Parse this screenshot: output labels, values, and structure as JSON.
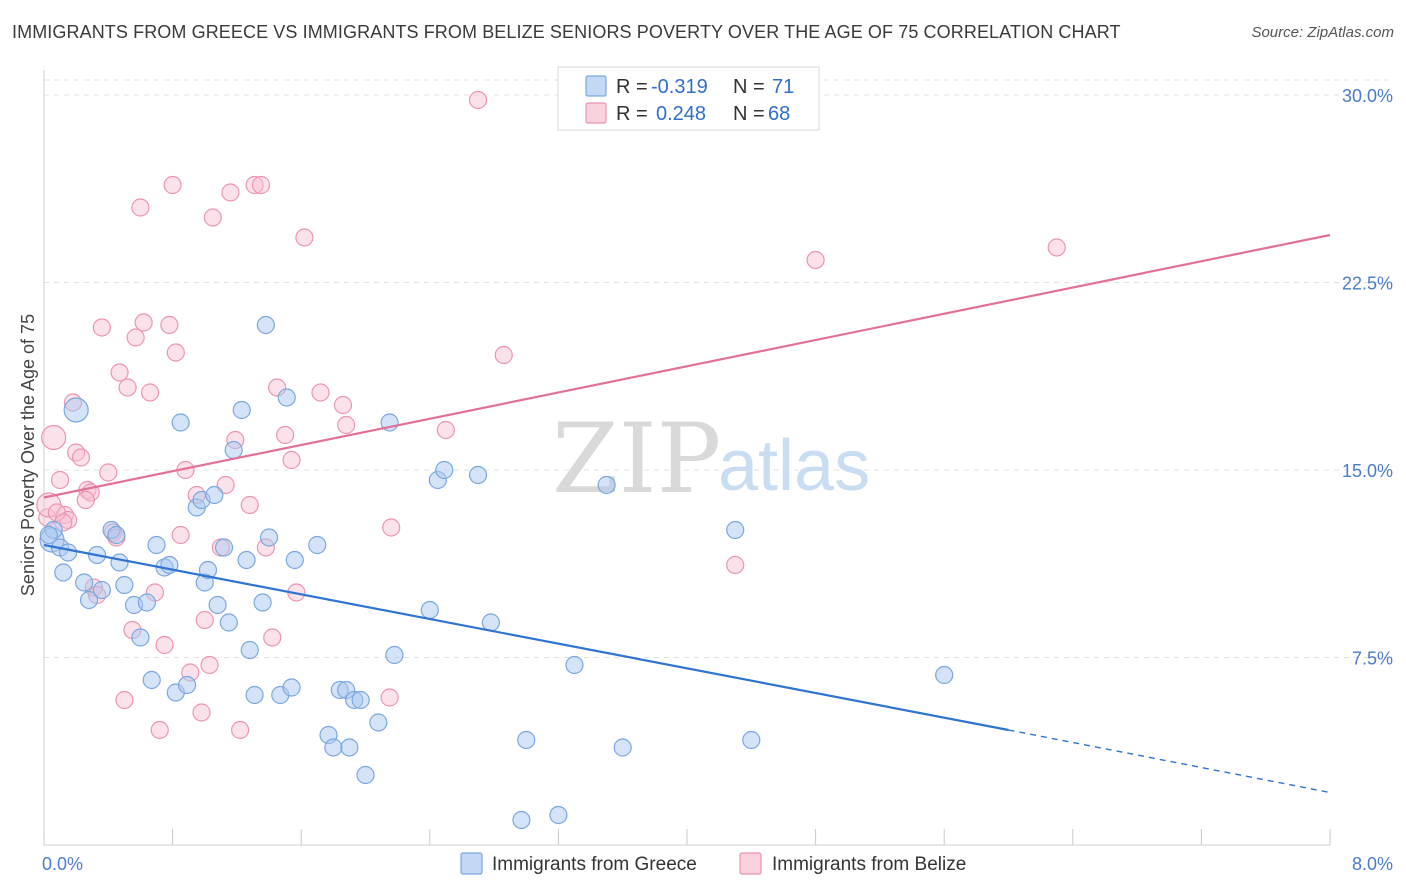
{
  "title": "IMMIGRANTS FROM GREECE VS IMMIGRANTS FROM BELIZE SENIORS POVERTY OVER THE AGE OF 75 CORRELATION CHART",
  "source": "Source: ZipAtlas.com",
  "watermark": {
    "zip": "ZIP",
    "atlas": "atlas"
  },
  "legend": {
    "r_label": "R =",
    "n_label": "N =",
    "rows": [
      {
        "r": "-0.319",
        "n": "71"
      },
      {
        "r": "0.248",
        "n": "68"
      }
    ]
  },
  "colors": {
    "greece_fill": "#a9c8ef",
    "greece_stroke": "#7aa7df",
    "greece_line": "#2f74d0",
    "belize_fill": "#f7bfd0",
    "belize_stroke": "#ec94b1",
    "belize_line": "#e2719a",
    "tick_text": "#4a7cc9",
    "grid": "#e2e2e2"
  },
  "chart_data": {
    "type": "scatter",
    "title": "IMMIGRANTS FROM GREECE VS IMMIGRANTS FROM BELIZE SENIORS POVERTY OVER THE AGE OF 75 CORRELATION CHART",
    "xlabel": "",
    "ylabel": "Seniors Poverty Over the Age of 75",
    "xlim": [
      0,
      8
    ],
    "ylim": [
      0,
      31
    ],
    "x_tick_labels": [
      "0.0%",
      "8.0%"
    ],
    "y_ticks": [
      7.5,
      15.0,
      22.5,
      30.0
    ],
    "y_tick_labels": [
      "7.5%",
      "15.0%",
      "22.5%",
      "30.0%"
    ],
    "grid": true,
    "legend_position": "top-center",
    "series": [
      {
        "name": "Immigrants from Greece",
        "r": -0.319,
        "n": 71,
        "trend": {
          "x0": 0,
          "y0": 12.0,
          "x1": 6.0,
          "y1": 4.6,
          "dash_to_x": 8.0,
          "dash_to_y": 2.1
        },
        "points": [
          [
            0.05,
            12.2
          ],
          [
            0.06,
            12.6
          ],
          [
            0.1,
            11.9
          ],
          [
            0.12,
            10.9
          ],
          [
            0.15,
            11.7
          ],
          [
            0.2,
            17.4
          ],
          [
            0.25,
            10.5
          ],
          [
            0.28,
            9.8
          ],
          [
            0.33,
            11.6
          ],
          [
            0.36,
            10.2
          ],
          [
            0.42,
            12.6
          ],
          [
            0.45,
            12.4
          ],
          [
            0.47,
            11.3
          ],
          [
            0.5,
            10.4
          ],
          [
            0.56,
            9.6
          ],
          [
            0.6,
            8.3
          ],
          [
            0.64,
            9.7
          ],
          [
            0.67,
            6.6
          ],
          [
            0.7,
            12.0
          ],
          [
            0.75,
            11.1
          ],
          [
            0.78,
            11.2
          ],
          [
            0.82,
            6.1
          ],
          [
            0.85,
            16.9
          ],
          [
            0.89,
            6.4
          ],
          [
            0.95,
            13.5
          ],
          [
            0.98,
            13.8
          ],
          [
            1.0,
            10.5
          ],
          [
            1.02,
            11.0
          ],
          [
            1.06,
            14.0
          ],
          [
            1.08,
            9.6
          ],
          [
            1.12,
            11.9
          ],
          [
            1.15,
            8.9
          ],
          [
            1.18,
            15.8
          ],
          [
            1.23,
            17.4
          ],
          [
            1.26,
            11.4
          ],
          [
            1.28,
            7.8
          ],
          [
            1.31,
            6.0
          ],
          [
            1.36,
            9.7
          ],
          [
            1.38,
            20.8
          ],
          [
            1.4,
            12.3
          ],
          [
            1.47,
            6.0
          ],
          [
            1.51,
            17.9
          ],
          [
            1.54,
            6.3
          ],
          [
            1.56,
            11.4
          ],
          [
            1.7,
            12.0
          ],
          [
            1.77,
            4.4
          ],
          [
            1.8,
            3.9
          ],
          [
            1.84,
            6.2
          ],
          [
            1.88,
            6.2
          ],
          [
            1.9,
            3.9
          ],
          [
            1.93,
            5.8
          ],
          [
            1.97,
            5.8
          ],
          [
            2.0,
            2.8
          ],
          [
            2.08,
            4.9
          ],
          [
            2.15,
            16.9
          ],
          [
            2.18,
            7.6
          ],
          [
            2.4,
            9.4
          ],
          [
            2.45,
            14.6
          ],
          [
            2.49,
            15.0
          ],
          [
            2.7,
            14.8
          ],
          [
            2.78,
            8.9
          ],
          [
            2.97,
            1.0
          ],
          [
            3.0,
            4.2
          ],
          [
            3.2,
            1.2
          ],
          [
            3.3,
            7.2
          ],
          [
            3.5,
            14.4
          ],
          [
            3.6,
            3.9
          ],
          [
            4.3,
            12.6
          ],
          [
            4.4,
            4.2
          ],
          [
            5.6,
            6.8
          ],
          [
            0.03,
            12.4
          ]
        ]
      },
      {
        "name": "Immigrants from Belize",
        "r": 0.248,
        "n": 68,
        "trend": {
          "x0": 0,
          "y0": 13.9,
          "x1": 8.0,
          "y1": 24.4
        },
        "points": [
          [
            0.02,
            13.1
          ],
          [
            0.03,
            13.6
          ],
          [
            0.06,
            16.3
          ],
          [
            0.1,
            14.6
          ],
          [
            0.13,
            13.2
          ],
          [
            0.15,
            13.0
          ],
          [
            0.18,
            17.7
          ],
          [
            0.2,
            15.7
          ],
          [
            0.23,
            15.5
          ],
          [
            0.27,
            14.2
          ],
          [
            0.29,
            14.1
          ],
          [
            0.31,
            10.3
          ],
          [
            0.33,
            10.0
          ],
          [
            0.36,
            20.7
          ],
          [
            0.4,
            14.9
          ],
          [
            0.43,
            12.5
          ],
          [
            0.45,
            12.3
          ],
          [
            0.47,
            18.9
          ],
          [
            0.5,
            5.8
          ],
          [
            0.52,
            18.3
          ],
          [
            0.55,
            8.6
          ],
          [
            0.57,
            20.3
          ],
          [
            0.6,
            25.5
          ],
          [
            0.62,
            20.9
          ],
          [
            0.66,
            18.1
          ],
          [
            0.69,
            10.1
          ],
          [
            0.72,
            4.6
          ],
          [
            0.75,
            8.0
          ],
          [
            0.78,
            20.8
          ],
          [
            0.8,
            26.4
          ],
          [
            0.82,
            19.7
          ],
          [
            0.85,
            12.4
          ],
          [
            0.88,
            15.0
          ],
          [
            0.91,
            6.9
          ],
          [
            0.95,
            14.0
          ],
          [
            0.98,
            5.3
          ],
          [
            1.0,
            9.0
          ],
          [
            1.03,
            7.2
          ],
          [
            1.05,
            25.1
          ],
          [
            1.1,
            11.9
          ],
          [
            1.13,
            14.4
          ],
          [
            1.16,
            26.1
          ],
          [
            1.19,
            16.2
          ],
          [
            1.22,
            4.6
          ],
          [
            1.28,
            13.6
          ],
          [
            1.31,
            26.4
          ],
          [
            1.35,
            26.4
          ],
          [
            1.38,
            11.9
          ],
          [
            1.42,
            8.3
          ],
          [
            1.45,
            18.3
          ],
          [
            1.5,
            16.4
          ],
          [
            1.54,
            15.4
          ],
          [
            1.57,
            10.1
          ],
          [
            1.62,
            24.3
          ],
          [
            1.72,
            18.1
          ],
          [
            1.86,
            17.6
          ],
          [
            1.88,
            16.8
          ],
          [
            2.15,
            5.9
          ],
          [
            2.16,
            12.7
          ],
          [
            2.5,
            16.6
          ],
          [
            2.7,
            29.8
          ],
          [
            2.86,
            19.6
          ],
          [
            4.3,
            11.2
          ],
          [
            4.8,
            23.4
          ],
          [
            6.3,
            23.9
          ],
          [
            0.08,
            13.3
          ],
          [
            0.12,
            12.9
          ],
          [
            0.26,
            13.8
          ]
        ]
      }
    ]
  },
  "bottom_legend": [
    "Immigrants from Greece",
    "Immigrants from Belize"
  ]
}
